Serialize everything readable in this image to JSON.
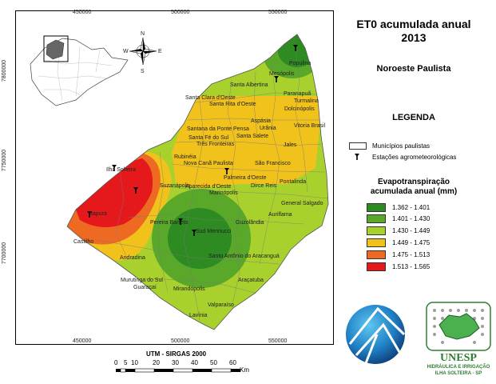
{
  "map": {
    "title_line1": "ET0 acumulada  anual",
    "title_line2": "2013",
    "region": "Noroeste Paulista",
    "legend_title": "LEGENDA",
    "legend_items": {
      "municipalities": "Municípios paulistas",
      "stations": "Estações agrometeorológicas"
    },
    "class_title_line1": "Evapotranspiração",
    "class_title_line2": "acumulada anual (mm)",
    "classes": [
      {
        "label": "1.362 - 1.401",
        "color": "#2e8b22"
      },
      {
        "label": "1.401 - 1.430",
        "color": "#5aa82a"
      },
      {
        "label": "1.430 - 1.449",
        "color": "#a9d12e"
      },
      {
        "label": "1.449 - 1.475",
        "color": "#f2c21c"
      },
      {
        "label": "1.475 - 1.513",
        "color": "#ee6a22"
      },
      {
        "label": "1.513 - 1.565",
        "color": "#e5191c"
      }
    ],
    "x_ticks": [
      "450000",
      "500000",
      "550000"
    ],
    "y_ticks": [
      "7800000",
      "7750000",
      "7700000"
    ],
    "scale": {
      "title": "UTM - SIRGAS 2000",
      "labels": [
        "0",
        "5",
        "10",
        "20",
        "30",
        "40",
        "50",
        "60"
      ],
      "unit": "Km"
    },
    "compass_labels": {
      "n": "N",
      "s": "S",
      "e": "E",
      "w": "W"
    },
    "municipalities": [
      "Populina",
      "Mesópolis",
      "Santa Albertina",
      "Paranapuã",
      "Turmalina",
      "Dolcinópolis",
      "Santa Clara d'Oeste",
      "Santa Rita d'Oeste",
      "Aspásia",
      "Urânia",
      "Vitoria Brasil",
      "Santana da Ponte Pensa",
      "Santa Fé do Sul",
      "Santa Salete",
      "Três Fronteiras",
      "Jales",
      "Rubinéia",
      "Nova Canã Paulista",
      "São Francisco",
      "Ilha Solteira",
      "Palmeira d'Oeste",
      "Aparecida d'Oeste",
      "Dirce Reis",
      "Pontalinda",
      "Suzanápolis",
      "Marinópolis",
      "General Salgado",
      "Itapura",
      "Auriflama",
      "Guzolândia",
      "Pereira Barreto",
      "Castilho",
      "Sud Mennucci",
      "Andradina",
      "Santo Antônio do Aracanguá",
      "Murutinga do Sul",
      "Guaraçaí",
      "Mirandópolis",
      "Araçatuba",
      "Valparaíso",
      "Lavínia"
    ]
  },
  "logos": {
    "unesp_line1": "UNESP",
    "unesp_line2": "HIDRÁULICA E IRRIGAÇÃO",
    "unesp_line3": "ILHA SOLTEIRA - SP"
  }
}
